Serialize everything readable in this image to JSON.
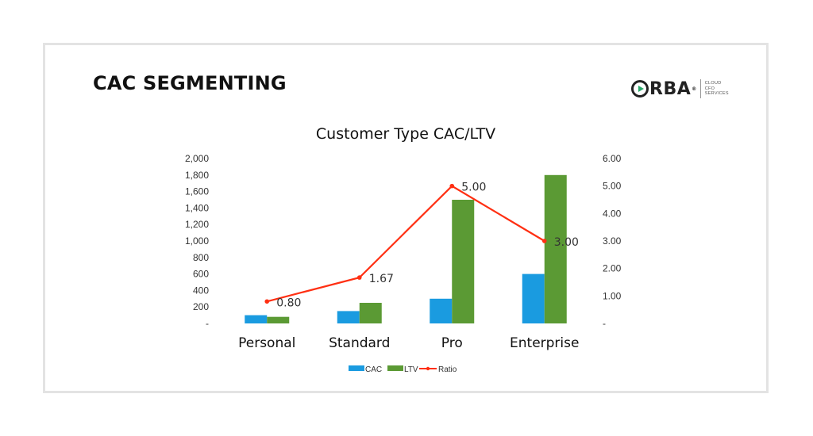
{
  "slide": {
    "title": "CAC SEGMENTING"
  },
  "logo": {
    "word": "RBA",
    "reg": "®",
    "tagline": [
      "CLOUD",
      "CFO",
      "SERVICES"
    ]
  },
  "colors": {
    "cac": "#1a9be0",
    "ltv": "#5b9a34",
    "ratio": "#ff2f12",
    "frame": "#e3e3e3"
  },
  "chart_data": {
    "type": "bar",
    "title": "Customer Type CAC/LTV",
    "categories": [
      "Personal",
      "Standard",
      "Pro",
      "Enterprise"
    ],
    "series": [
      {
        "name": "CAC",
        "type": "bar",
        "axis": "left",
        "values": [
          100,
          150,
          300,
          600
        ]
      },
      {
        "name": "LTV",
        "type": "bar",
        "axis": "left",
        "values": [
          80,
          250,
          1500,
          1800
        ]
      },
      {
        "name": "Ratio",
        "type": "line",
        "axis": "right",
        "values": [
          0.8,
          1.67,
          5.0,
          3.0
        ],
        "labels": [
          "0.80",
          "1.67",
          "5.00",
          "3.00"
        ]
      }
    ],
    "y_left": {
      "min": 0,
      "max": 2000,
      "step": 200,
      "tick_labels": [
        "-",
        "200",
        "400",
        "600",
        "800",
        "1,000",
        "1,200",
        "1,400",
        "1,600",
        "1,800",
        "2,000"
      ]
    },
    "y_right": {
      "min": 0,
      "max": 6,
      "step": 1,
      "tick_labels": [
        "-",
        "1.00",
        "2.00",
        "3.00",
        "4.00",
        "5.00",
        "6.00"
      ]
    },
    "legend": {
      "position": "bottom",
      "items": [
        "CAC",
        "LTV",
        "Ratio"
      ]
    },
    "grid": false
  }
}
